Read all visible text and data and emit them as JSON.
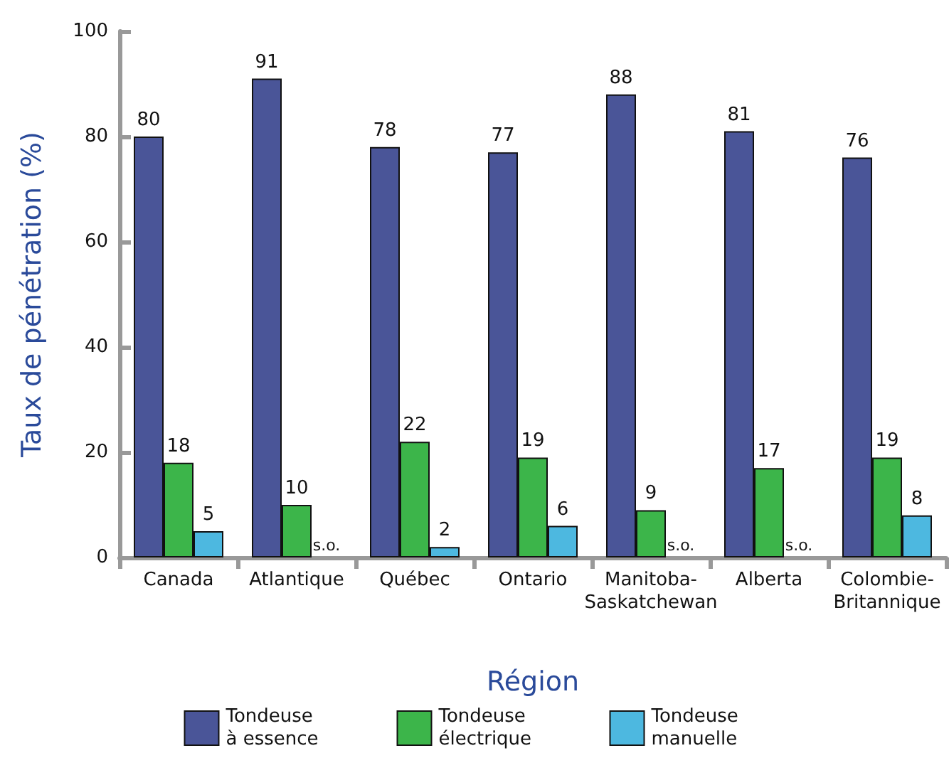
{
  "chart_data": {
    "type": "bar",
    "xlabel": "Région",
    "ylabel": "Taux de pénétration (%)",
    "categories": [
      "Canada",
      "Atlantique",
      "Québec",
      "Ontario",
      "Manitoba-Saskatchewan",
      "Alberta",
      "Colombie-Britannique"
    ],
    "series": [
      {
        "name": "Tondeuse à essence",
        "color": "#4a5598",
        "values": [
          80,
          91,
          78,
          77,
          88,
          81,
          76
        ]
      },
      {
        "name": "Tondeuse électrique",
        "color": "#3cb54a",
        "values": [
          18,
          10,
          22,
          19,
          9,
          17,
          19
        ]
      },
      {
        "name": "Tondeuse manuelle",
        "color": "#4db8e0",
        "values": [
          5,
          null,
          2,
          6,
          null,
          null,
          8
        ],
        "value_labels": [
          "5",
          "s.o.",
          "2",
          "6",
          "s.o.",
          "s.o.",
          "8"
        ]
      }
    ],
    "ylim": [
      0,
      100
    ],
    "yticks": [
      0,
      20,
      40,
      60,
      80,
      100
    ],
    "grid": false,
    "legend": "bottom",
    "data_labels": true
  }
}
